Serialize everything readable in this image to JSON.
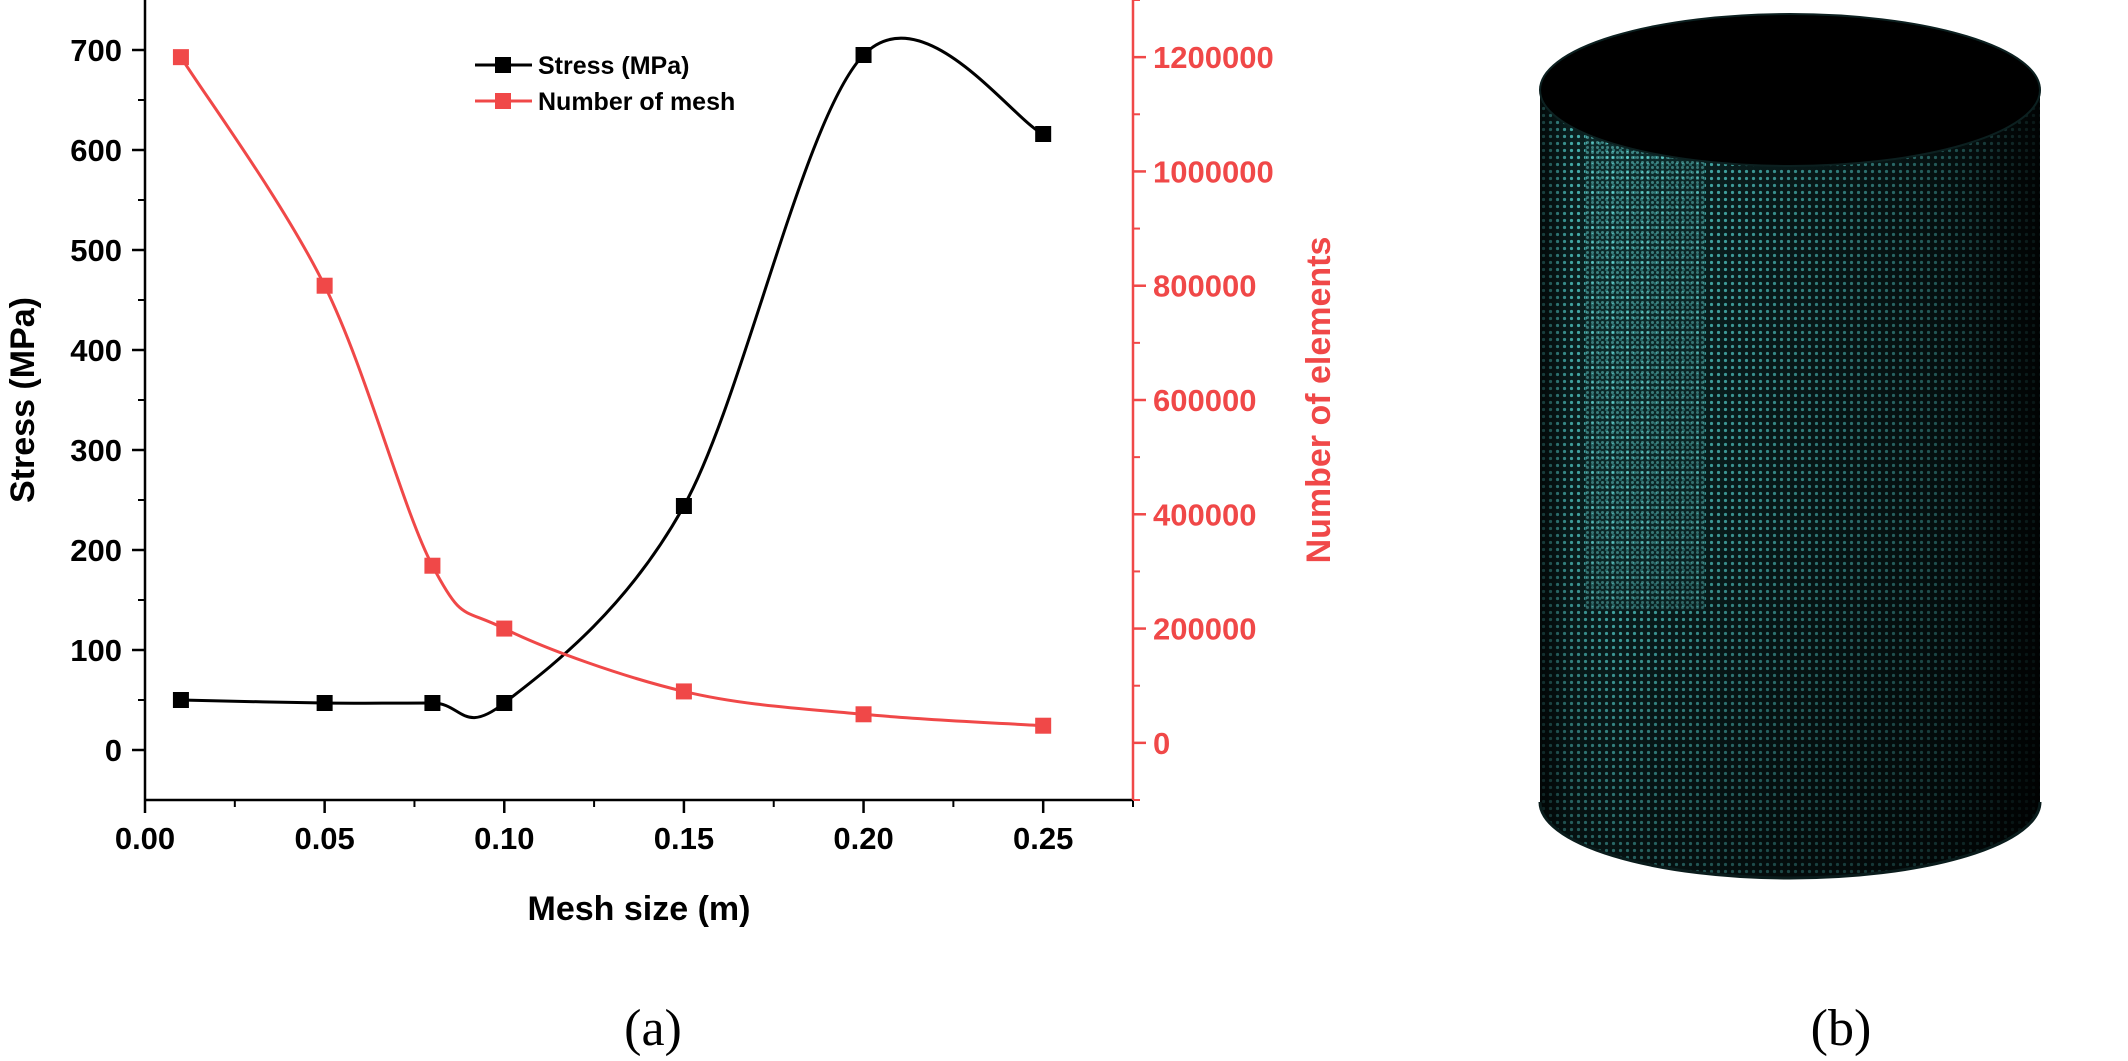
{
  "chart_data": {
    "type": "line",
    "x": [
      0.01,
      0.05,
      0.08,
      0.1,
      0.15,
      0.2,
      0.25
    ],
    "xlabel": "Mesh size (m)",
    "xlim": [
      0.0,
      0.275
    ],
    "xticks": [
      "0.00",
      "0.05",
      "0.10",
      "0.15",
      "0.20",
      "0.25"
    ],
    "y_left": {
      "label": "Stress (MPa)",
      "lim": [
        -50,
        750
      ],
      "ticks": [
        "0",
        "100",
        "200",
        "300",
        "400",
        "500",
        "600",
        "700"
      ],
      "color": "#000000"
    },
    "y_right": {
      "label": "Number of elements",
      "lim": [
        -100000,
        1300000
      ],
      "ticks": [
        "0",
        "200000",
        "400000",
        "600000",
        "800000",
        "1000000",
        "1200000"
      ],
      "color": "#f04848"
    },
    "series": [
      {
        "name": "Stress (MPa)",
        "axis": "left",
        "color": "#000000",
        "values": [
          50,
          47,
          47,
          47,
          244,
          695,
          616
        ]
      },
      {
        "name": "Number of mesh",
        "axis": "right",
        "color": "#f04848",
        "values": [
          1200000,
          800000,
          310000,
          200000,
          90000,
          50000,
          30000
        ]
      }
    ],
    "legend_position": "top-center",
    "grid": false
  },
  "panels": {
    "left_caption": "(a)",
    "right_caption": "(b)"
  },
  "mesh_colors": {
    "body": "#0c2525",
    "mesh": "#4fc7c4",
    "top": "#000000"
  }
}
